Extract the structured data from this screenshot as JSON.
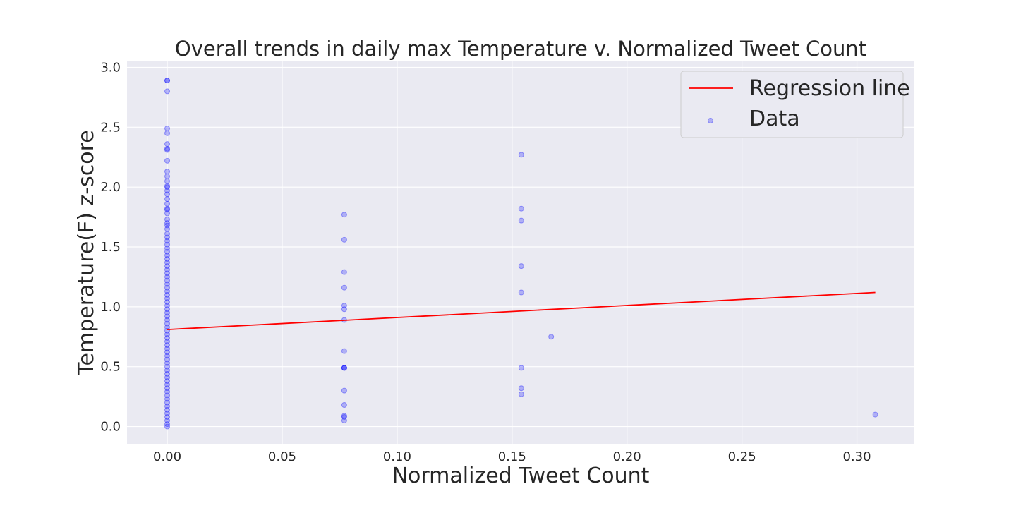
{
  "chart_data": {
    "type": "scatter",
    "title": "Overall trends in daily max Temperature v. Normalized Tweet Count",
    "xlabel": "Normalized Tweet Count",
    "ylabel": "Temperature(F) z-score",
    "xlim": [
      -0.0175,
      0.325
    ],
    "ylim": [
      -0.15,
      3.05
    ],
    "xticks": [
      0.0,
      0.05,
      0.1,
      0.15,
      0.2,
      0.25,
      0.3
    ],
    "xtick_labels": [
      "0.00",
      "0.05",
      "0.10",
      "0.15",
      "0.20",
      "0.25",
      "0.30"
    ],
    "yticks": [
      0.0,
      0.5,
      1.0,
      1.5,
      2.0,
      2.5,
      3.0
    ],
    "ytick_labels": [
      "0.0",
      "0.5",
      "1.0",
      "1.5",
      "2.0",
      "2.5",
      "3.0"
    ],
    "grid": true,
    "legend": {
      "position": "top-right",
      "entries": [
        "Regression line",
        "Data"
      ]
    },
    "series": [
      {
        "name": "Regression line",
        "type": "line",
        "color": "#ff0000",
        "x": [
          0.0,
          0.308
        ],
        "y": [
          0.81,
          1.12
        ]
      },
      {
        "name": "Data",
        "type": "scatter",
        "color": "#0000ff",
        "alpha": 0.25,
        "x": [
          0.077,
          0.077,
          0.077,
          0.077,
          0.077,
          0.077,
          0.077,
          0.077,
          0.077,
          0.077,
          0.077,
          0.077,
          0.077,
          0.077,
          0.077,
          0.077,
          0.154,
          0.154,
          0.154,
          0.154,
          0.154,
          0.154,
          0.154,
          0.154,
          0.167,
          0.308
        ],
        "y": [
          1.77,
          1.56,
          1.29,
          1.16,
          1.01,
          0.98,
          0.89,
          0.63,
          0.49,
          0.49,
          0.3,
          0.18,
          0.09,
          0.08,
          0.05,
          0.49,
          2.27,
          1.82,
          1.72,
          1.34,
          1.12,
          0.49,
          0.32,
          0.27,
          0.75,
          0.1
        ]
      }
    ],
    "dense_column": {
      "series": "Data",
      "x": 0.0,
      "y": [
        2.89,
        2.89,
        2.8,
        2.49,
        2.45,
        2.36,
        2.32,
        2.31,
        2.22,
        2.13,
        2.09,
        2.05,
        2.01,
        2.0,
        1.97,
        1.94,
        1.9,
        1.86,
        1.82,
        1.81,
        1.78,
        1.73,
        1.7,
        1.68,
        1.65,
        1.61,
        1.58,
        1.55,
        1.52,
        1.49,
        1.46,
        1.43,
        1.4,
        1.37,
        1.34,
        1.31,
        1.28,
        1.25,
        1.22,
        1.19,
        1.16,
        1.13,
        1.1,
        1.07,
        1.04,
        1.01,
        0.98,
        0.95,
        0.92,
        0.89,
        0.86,
        0.83,
        0.8,
        0.77,
        0.74,
        0.71,
        0.68,
        0.65,
        0.62,
        0.59,
        0.56,
        0.53,
        0.5,
        0.47,
        0.44,
        0.41,
        0.38,
        0.35,
        0.32,
        0.29,
        0.26,
        0.23,
        0.2,
        0.17,
        0.14,
        0.11,
        0.08,
        0.05,
        0.02,
        0.0
      ]
    }
  }
}
